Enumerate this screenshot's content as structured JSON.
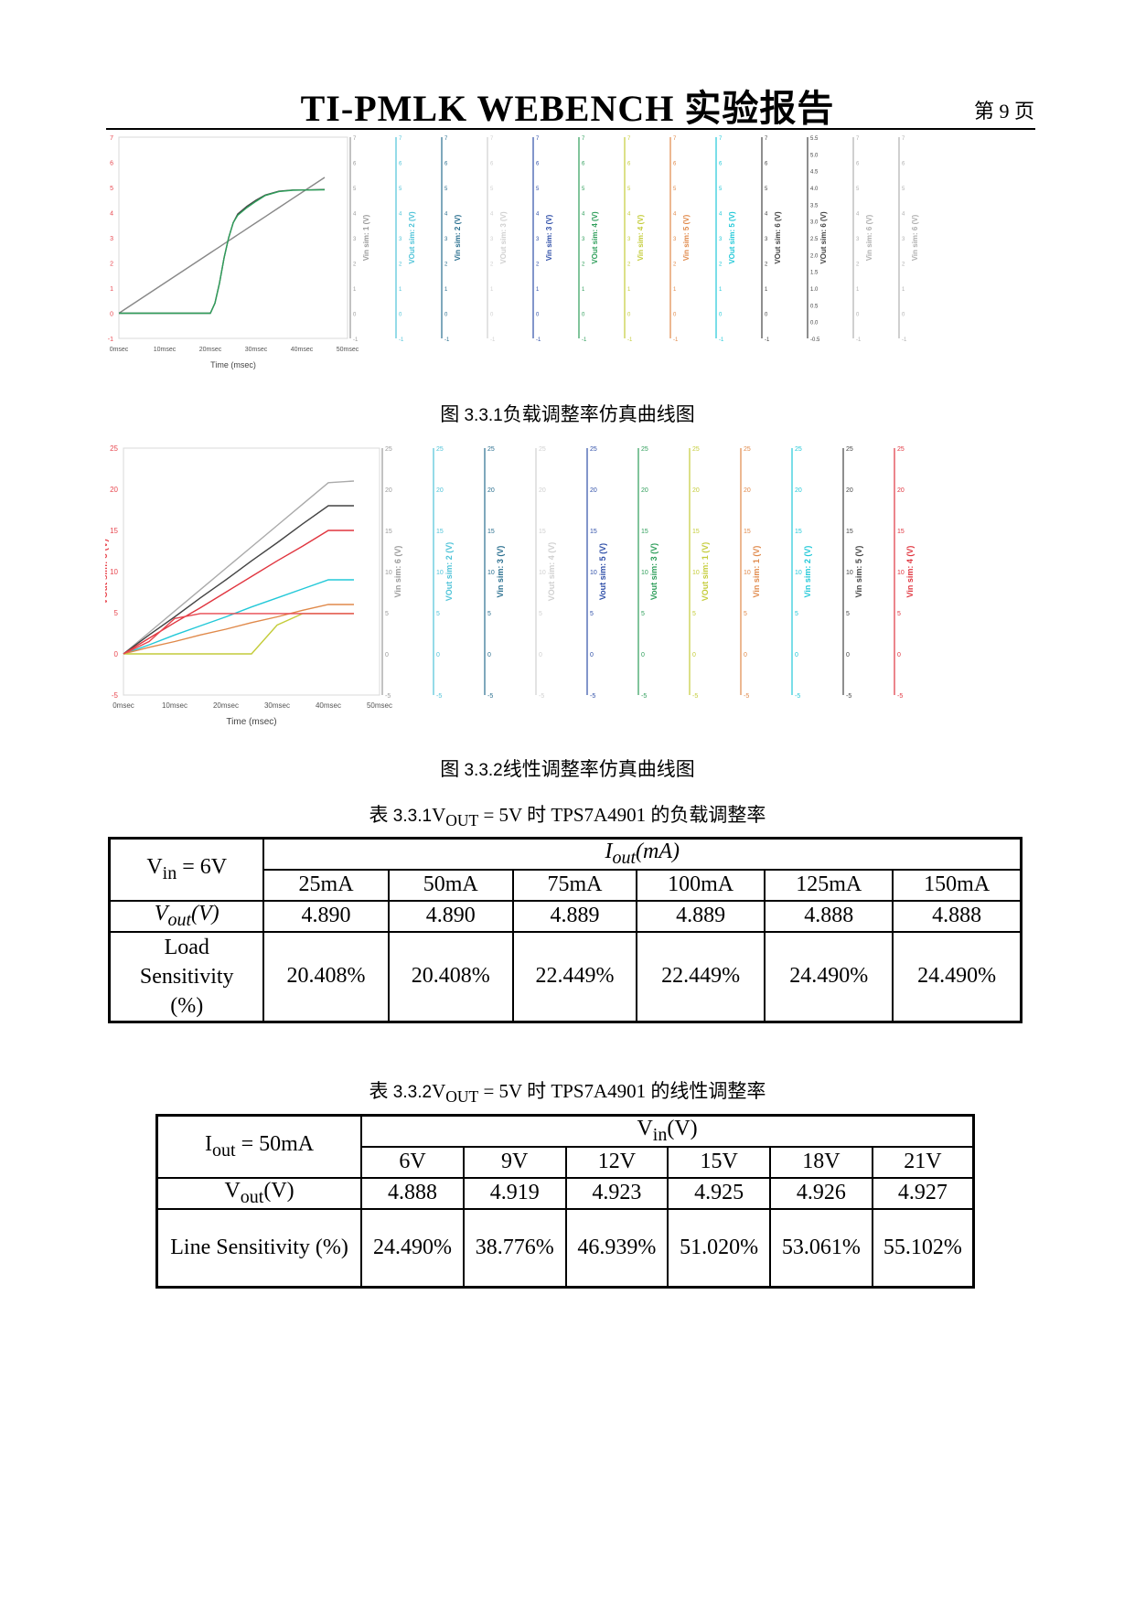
{
  "header": {
    "title": "TI-PMLK WEBENCH  实验报告",
    "page": "第 9 页"
  },
  "fig1": {
    "caption_prefix": "图",
    "caption_num": "3.3.1",
    "caption_text": "负载调整率仿真曲线图",
    "xlabel": "Time (msec)",
    "xticks": [
      "0msec",
      "10msec",
      "20msec",
      "30msec",
      "40msec",
      "50msec"
    ],
    "yticks": [
      "-1",
      "0",
      "1",
      "2",
      "3",
      "4",
      "5",
      "6",
      "7"
    ],
    "y2ticks": [
      "-0.5",
      "0.0",
      "0.5",
      "1.0",
      "1.5",
      "2.0",
      "2.5",
      "3.0",
      "3.5",
      "4.0",
      "4.5",
      "5.0",
      "5.5"
    ],
    "axes": [
      {
        "label": "VOut sim: 1 (V)",
        "color": "#e8474f"
      },
      {
        "label": "Vin sim: 1 (V)",
        "color": "#9a9a9a"
      },
      {
        "label": "VOut sim: 2 (V)",
        "color": "#4fc3d8"
      },
      {
        "label": "Vin sim: 2 (V)",
        "color": "#2a6f8f"
      },
      {
        "label": "VOut sim: 3 (V)",
        "color": "#d0d0d0"
      },
      {
        "label": "Vin sim: 3 (V)",
        "color": "#2f4fa8"
      },
      {
        "label": "VOut sim: 4 (V)",
        "color": "#2e9e5a"
      },
      {
        "label": "Vin sim: 4 (V)",
        "color": "#c4cc3a"
      },
      {
        "label": "Vin sim: 5 (V)",
        "color": "#e0894a"
      },
      {
        "label": "VOut sim: 5 (V)",
        "color": "#22c8d8"
      },
      {
        "label": "VOut sim: 6 (V)",
        "color": "#444444"
      },
      {
        "label": "VOut sim: 6 (V)",
        "color": "#444444"
      },
      {
        "label": "Vin sim: 6 (V)",
        "color": "#b0b0b0"
      },
      {
        "label": "Vin sim: 6 (V)",
        "color": "#b0b0b0"
      }
    ]
  },
  "fig2": {
    "caption_prefix": "图",
    "caption_num": "3.3.2",
    "caption_text": "线性调整率仿真曲线图",
    "xlabel": "Time (msec)",
    "xticks": [
      "0msec",
      "10msec",
      "20msec",
      "30msec",
      "40msec",
      "50msec"
    ],
    "yticks": [
      "-5",
      "0",
      "5",
      "10",
      "15",
      "20",
      "25"
    ],
    "axes": [
      {
        "label": "VOut sim: 6 (V)",
        "color": "#e8474f"
      },
      {
        "label": "Vin sim: 6 (V)",
        "color": "#9a9a9a"
      },
      {
        "label": "VOut sim: 2 (V)",
        "color": "#4fc3d8"
      },
      {
        "label": "Vin sim: 3 (V)",
        "color": "#2a6f8f"
      },
      {
        "label": "VOut sim: 4 (V)",
        "color": "#d0d0d0"
      },
      {
        "label": "Vout sim: 5 (V)",
        "color": "#2f4fa8"
      },
      {
        "label": "Vout sim: 3 (V)",
        "color": "#2e9e5a"
      },
      {
        "label": "VOut sim: 1 (V)",
        "color": "#c4cc3a"
      },
      {
        "label": "Vin sim: 1 (V)",
        "color": "#e0894a"
      },
      {
        "label": "Vin sim: 2 (V)",
        "color": "#22c8d8"
      },
      {
        "label": "Vin sim: 5 (V)",
        "color": "#444444"
      },
      {
        "label": "Vin sim: 4 (V)",
        "color": "#e0353f"
      }
    ]
  },
  "chart_data": [
    {
      "type": "line",
      "x": [
        0,
        10,
        20,
        21,
        22,
        23,
        24,
        25,
        26,
        27,
        28,
        30,
        32,
        35,
        38,
        40,
        45
      ],
      "xlim": [
        0,
        50
      ],
      "ylim": [
        -1,
        7
      ],
      "xlabel": "Time (msec)",
      "ylabel": "VOut sim: 1 (V)",
      "series": [
        {
          "name": "Vin sim: 1 (V)",
          "color": "#888888",
          "values": [
            0,
            1.2,
            2.4,
            2.52,
            2.64,
            2.76,
            2.88,
            3.0,
            3.12,
            3.24,
            3.36,
            3.6,
            3.84,
            4.2,
            4.56,
            4.8,
            5.4
          ]
        },
        {
          "name": "VOut sim: 1 (V)",
          "color": "#444444",
          "values": [
            0,
            0,
            0,
            0.4,
            1.2,
            2.2,
            3.0,
            3.6,
            3.95,
            4.1,
            4.25,
            4.5,
            4.7,
            4.85,
            4.9,
            4.9,
            4.92
          ]
        },
        {
          "name": "VOut sim: 2 (V)",
          "color": "#2e9e5a",
          "values": [
            0,
            0,
            0,
            0.4,
            1.2,
            2.2,
            3.0,
            3.6,
            3.9,
            4.05,
            4.2,
            4.45,
            4.68,
            4.84,
            4.89,
            4.9,
            4.91
          ]
        }
      ]
    },
    {
      "type": "line",
      "x": [
        0,
        5,
        10,
        15,
        20,
        25,
        30,
        35,
        40,
        45
      ],
      "xlim": [
        0,
        50
      ],
      "ylim": [
        -5,
        25
      ],
      "xlabel": "Time (msec)",
      "ylabel": "VOut sim: 6 (V)",
      "series": [
        {
          "name": "Vin sim: 6 (V)",
          "color": "#aaaaaa",
          "values": [
            0,
            2.6,
            5.2,
            7.8,
            10.4,
            13,
            15.6,
            18.2,
            20.8,
            21
          ]
        },
        {
          "name": "Vin sim: 5 (V)",
          "color": "#444444",
          "values": [
            0,
            2.3,
            4.5,
            6.8,
            9,
            11.3,
            13.5,
            15.8,
            18,
            18
          ]
        },
        {
          "name": "Vin sim: 4 (V)",
          "color": "#e0353f",
          "values": [
            0,
            1.9,
            3.8,
            5.6,
            7.5,
            9.4,
            11.3,
            13.1,
            15,
            15
          ]
        },
        {
          "name": "Vin sim: 2 (V)",
          "color": "#22c8d8",
          "values": [
            0,
            1.1,
            2.3,
            3.4,
            4.5,
            5.7,
            6.8,
            7.9,
            9,
            9
          ]
        },
        {
          "name": "Vin sim: 1 (V)",
          "color": "#e0894a",
          "values": [
            0,
            0.8,
            1.5,
            2.3,
            3,
            3.8,
            4.5,
            5.3,
            6,
            6
          ]
        },
        {
          "name": "VOut sim: 1 (V)",
          "color": "#c4cc3a",
          "values": [
            0,
            0,
            0,
            0,
            0,
            0,
            3.5,
            4.9,
            4.9,
            4.9
          ]
        },
        {
          "name": "VOut sim: 6 (V)",
          "color": "#e8474f",
          "values": [
            0,
            1.5,
            4.3,
            4.9,
            4.9,
            4.9,
            4.9,
            4.9,
            4.9,
            4.9
          ]
        }
      ]
    }
  ],
  "table1": {
    "caption_prefix": "表",
    "caption_num": "3.3.1",
    "caption_text": "V",
    "caption_sub": "OUT",
    "caption_rest": " = 5V 时 TPS7A4901 的负载调整率",
    "corner_main": "V",
    "corner_sub": "in",
    "corner_rest": " = 6V",
    "group_main": "I",
    "group_sub": "out",
    "group_rest": "(mA)",
    "cols": [
      "25mA",
      "50mA",
      "75mA",
      "100mA",
      "125mA",
      "150mA"
    ],
    "row1_main": "V",
    "row1_sub": "out",
    "row1_rest": "(V)",
    "row1": [
      "4.890",
      "4.890",
      "4.889",
      "4.889",
      "4.888",
      "4.888"
    ],
    "row2_l1": "Load",
    "row2_l2": "Sensitivity",
    "row2_l3": "(%)",
    "row2": [
      "20.408%",
      "20.408%",
      "22.449%",
      "22.449%",
      "24.490%",
      "24.490%"
    ]
  },
  "table2": {
    "caption_prefix": "表",
    "caption_num": "3.3.2",
    "caption_text": "V",
    "caption_sub": "OUT",
    "caption_rest": " = 5V 时 TPS7A4901 的线性调整率",
    "corner_main": "I",
    "corner_sub": "out",
    "corner_rest": " = 50mA",
    "group_main": "V",
    "group_sub": "in",
    "group_rest": "(V)",
    "cols": [
      "6V",
      "9V",
      "12V",
      "15V",
      "18V",
      "21V"
    ],
    "row1_main": "V",
    "row1_sub": "out",
    "row1_rest": "(V)",
    "row1": [
      "4.888",
      "4.919",
      "4.923",
      "4.925",
      "4.926",
      "4.927"
    ],
    "row2_label": "Line Sensitivity (%)",
    "row2": [
      "24.490%",
      "38.776%",
      "46.939%",
      "51.020%",
      "53.061%",
      "55.102%"
    ]
  }
}
